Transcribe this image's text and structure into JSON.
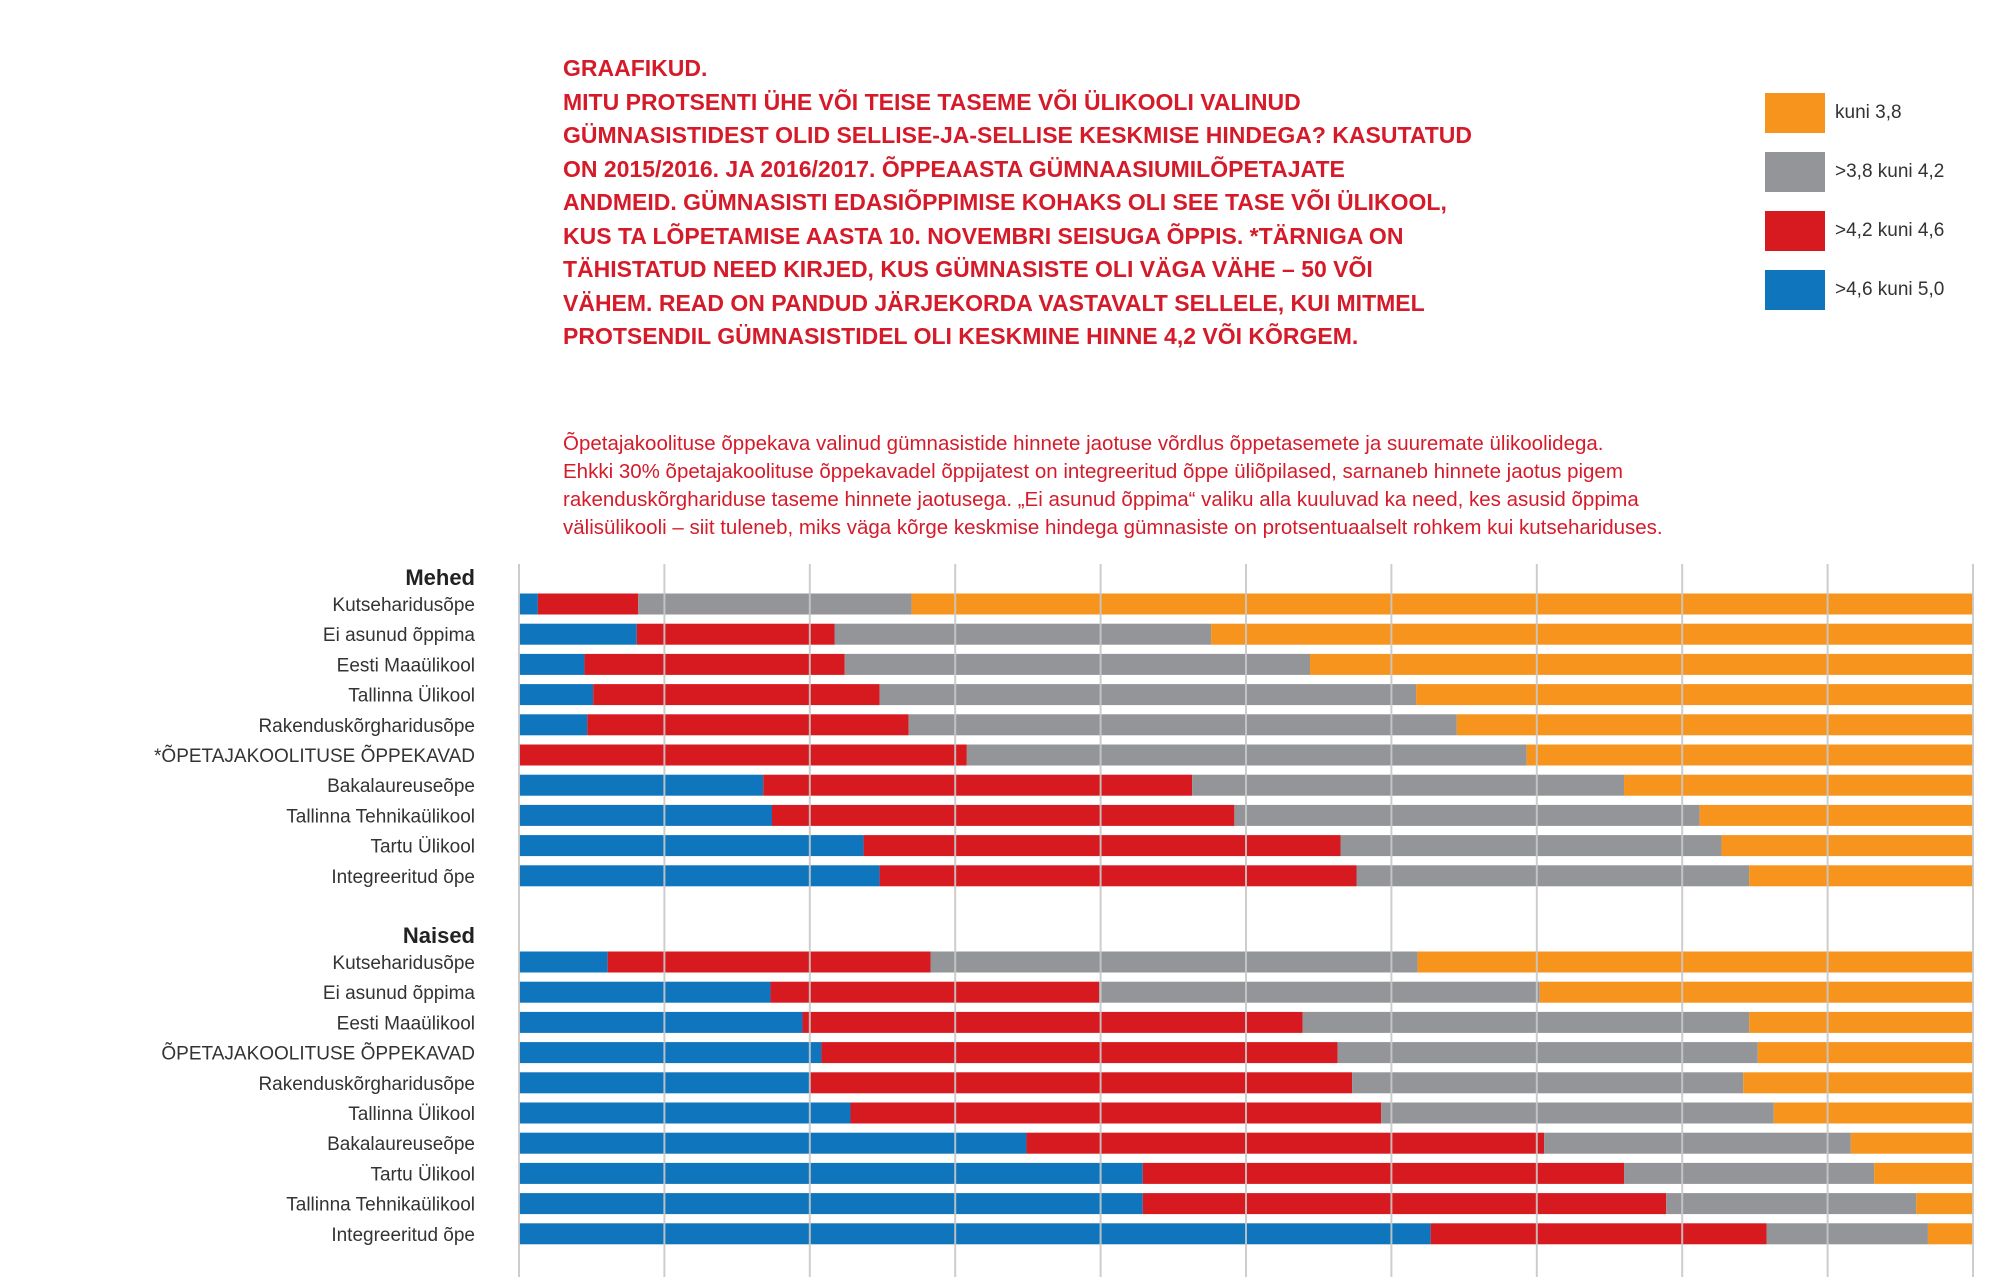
{
  "title_lines": [
    "GRAAFIKUD.",
    "MITU PROTSENTI ÜHE VÕI TEISE TASEME VÕI ÜLIKOOLI VALINUD",
    "GÜMNASISTIDEST OLID SELLISE-JA-SELLISE KESKMISE HINDEGA? KASUTATUD",
    "ON 2015/2016. JA 2016/2017. ÕPPEAASTA GÜMNAASIUMILÕPETAJATE",
    "ANDMEID. GÜMNASISTI EDASIÕPPIMISE KOHAKS OLI SEE TASE VÕI ÜLIKOOL,",
    "KUS TA LÕPETAMISE AASTA 10. NOVEMBRI SEISUGA ÕPPIS. *TÄRNIGA ON",
    "TÄHISTATUD NEED KIRJED, KUS GÜMNASISTE OLI VÄGA VÄHE – 50 VÕI",
    "VÄHEM. READ ON PANDUD JÄRJEKORDA VASTAVALT SELLELE, KUI MITMEL",
    "PROTSENDIL GÜMNASISTIDEL OLI KESKMINE HINNE 4,2 VÕI KÕRGEM."
  ],
  "subtitle_lines": [
    "Õpetajakoolituse õppekava valinud gümnasistide hinnete jaotuse võrdlus õppetasemete ja suuremate ülikoolidega.",
    "Ehkki 30% õpetajakoolituse õppekavadel õppijatest on integreeritud õppe üliõpilased, sarnaneb hinnete jaotus pigem",
    "rakenduskõrghariduse taseme hinnete jaotusega. „Ei asunud õppima“ valiku alla kuuluvad ka need, kes asusid õppima",
    "välisülikooli – siit tuleneb, miks väga kõrge keskmise hindega gümnasiste on protsentuaalselt rohkem kui kutsehariduses."
  ],
  "chart_data": {
    "type": "bar",
    "orientation": "horizontal-stacked-100",
    "xlim": [
      0,
      100
    ],
    "grid": true,
    "legend_position": "top-right",
    "legend": [
      {
        "name": "kuni 3,8",
        "color": "#f7941d"
      },
      {
        "name": ">3,8 kuni 4,2",
        "color": "#939598"
      },
      {
        "name": ">4,2 kuni 4,6",
        "color": "#d71920"
      },
      {
        "name": ">4,6 kuni 5,0",
        "color": "#0f75bc"
      }
    ],
    "stack_order": [
      ">4,6 kuni 5,0",
      ">4,2 kuni 4,6",
      ">3,8 kuni 4,2",
      "kuni 3,8"
    ],
    "groups": [
      {
        "name": "Mehed",
        "rows": [
          {
            "label": "Kutseharidusõpe",
            "values": [
              1.3,
              6.9,
              18.8,
              73.0
            ]
          },
          {
            "label": "Ei asunud õppima",
            "values": [
              8.1,
              13.6,
              25.9,
              52.4
            ]
          },
          {
            "label": "Eesti Maaülikool",
            "values": [
              4.5,
              17.9,
              32.0,
              45.6
            ]
          },
          {
            "label": "Tallinna Ülikool",
            "values": [
              5.1,
              19.7,
              36.9,
              38.3
            ]
          },
          {
            "label": "Rakenduskõrgharidusõpe",
            "values": [
              4.7,
              22.1,
              37.7,
              35.5
            ]
          },
          {
            "label": "*ÕPETAJAKOOLITUSE ÕPPEKAVAD",
            "values": [
              0,
              30.8,
              38.5,
              30.7
            ]
          },
          {
            "label": "Bakalaureuseõpe",
            "values": [
              16.8,
              29.5,
              29.7,
              24.0
            ]
          },
          {
            "label": "Tallinna Tehnikaülikool",
            "values": [
              17.4,
              31.8,
              32.0,
              18.8
            ]
          },
          {
            "label": "Tartu Ülikool",
            "values": [
              23.7,
              32.8,
              26.2,
              17.3
            ]
          },
          {
            "label": "Integreeritud õpe",
            "values": [
              24.8,
              32.8,
              27.0,
              15.4
            ]
          }
        ]
      },
      {
        "name": "Naised",
        "rows": [
          {
            "label": "Kutseharidusõpe",
            "values": [
              6.1,
              22.2,
              33.5,
              38.2
            ]
          },
          {
            "label": "Ei asunud õppima",
            "values": [
              17.3,
              22.6,
              30.3,
              29.8
            ]
          },
          {
            "label": "Eesti Maaülikool",
            "values": [
              19.5,
              34.4,
              30.7,
              15.4
            ]
          },
          {
            "label": "ÕPETAJAKOOLITUSE ÕPPEKAVAD",
            "values": [
              20.8,
              35.5,
              28.9,
              14.8
            ]
          },
          {
            "label": "Rakenduskõrgharidusõpe",
            "values": [
              20.0,
              37.3,
              26.9,
              15.8
            ]
          },
          {
            "label": "Tallinna Ülikool",
            "values": [
              22.8,
              36.5,
              27.0,
              13.7
            ]
          },
          {
            "label": "Bakalaureuseõpe",
            "values": [
              34.9,
              35.6,
              21.1,
              8.4
            ]
          },
          {
            "label": "Tartu Ülikool",
            "values": [
              42.9,
              33.1,
              17.2,
              6.8
            ]
          },
          {
            "label": "Tallinna Tehnikaülikool",
            "values": [
              42.9,
              36.0,
              17.2,
              3.9
            ]
          },
          {
            "label": "Integreeritud õpe",
            "values": [
              62.7,
              23.1,
              11.1,
              3.1
            ]
          }
        ]
      }
    ]
  }
}
